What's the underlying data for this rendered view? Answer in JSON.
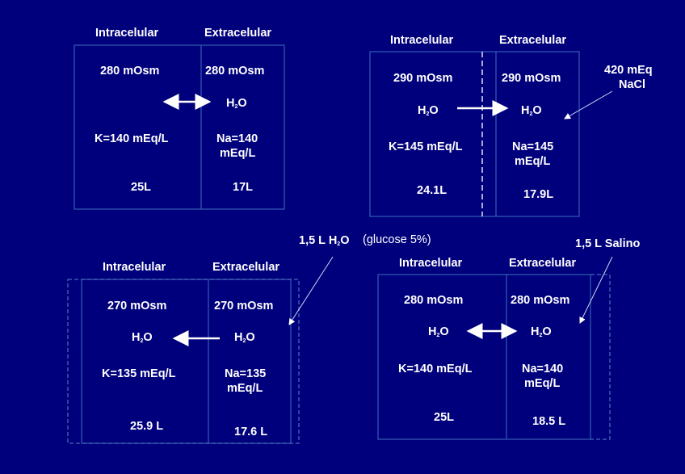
{
  "colors": {
    "background": "#00007c",
    "box_border": "#2f56b0",
    "text": "#ffffff"
  },
  "panels": [
    {
      "intra_label": "Intracelular",
      "extra_label": "Extracelular",
      "intra_osm": "280 mOsm",
      "extra_osm": "280 mOsm",
      "h2o_left": "",
      "h2o_right": "H2O",
      "intra_ion": "K=140 mEq/L",
      "extra_ion_1": "Na=140",
      "extra_ion_2": "mEq/L",
      "intra_vol": "25L",
      "extra_vol": "17L"
    },
    {
      "intra_label": "Intracelular",
      "extra_label": "Extracelular",
      "intra_osm": "290 mOsm",
      "extra_osm": "290 mOsm",
      "h2o_left": "H2O",
      "h2o_right": "H2O",
      "intra_ion": "K=145 mEq/L",
      "extra_ion_1": "Na=145",
      "extra_ion_2": "mEq/L",
      "intra_vol": "24.1L",
      "extra_vol": "17.9L",
      "annotation_1": "420 mEq",
      "annotation_2": "NaCl"
    },
    {
      "intra_label": "Intracelular",
      "extra_label": "Extracelular",
      "intra_osm": "270 mOsm",
      "extra_osm": "270 mOsm",
      "h2o_left": "H2O",
      "h2o_right": "H2O",
      "intra_ion": "K=135 mEq/L",
      "extra_ion_1": "Na=135",
      "extra_ion_2": "mEq/L",
      "intra_vol": "25.9 L",
      "extra_vol": "17.6 L",
      "annotation_1": "1,5 L H2O",
      "annotation_2": "(glucose  5%)"
    },
    {
      "intra_label": "Intracelular",
      "extra_label": "Extracelular",
      "intra_osm": "280 mOsm",
      "extra_osm": "280 mOsm",
      "h2o_left": "H2O",
      "h2o_right": "H2O",
      "intra_ion": "K=140 mEq/L",
      "extra_ion_1": "Na=140",
      "extra_ion_2": "mEq/L",
      "intra_vol": "25L",
      "extra_vol": "18.5 L",
      "annotation_1": "1,5 L Salino"
    }
  ]
}
